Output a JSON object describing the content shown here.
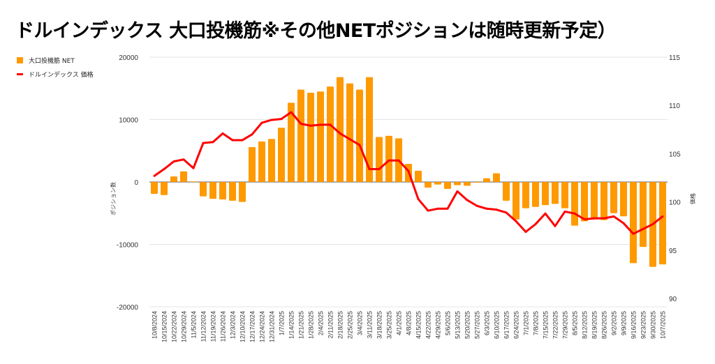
{
  "title": "ドルインデックス 大口投機筋※その他NETポジションは随時更新予定）",
  "chart_data": {
    "type": "bar+line",
    "title": "ドルインデックス 大口投機筋※その他NETポジションは随時更新予定）",
    "ylabel": "ポジション数",
    "y2label": "価格",
    "ylim": [
      -20000,
      20000
    ],
    "y2lim": [
      90,
      115
    ],
    "yticks": [
      "20000",
      "10000",
      "0",
      "-10000",
      "-20000"
    ],
    "y2ticks": [
      "115",
      "110",
      "105",
      "100",
      "95",
      "90"
    ],
    "legend_position": "top-left",
    "colors": {
      "bar": "#ff9900",
      "line": "#ff0000"
    },
    "categories": [
      "10/8/2024",
      "10/15/2024",
      "10/22/2024",
      "10/29/2024",
      "11/5/2024",
      "11/12/2024",
      "11/19/2024",
      "11/26/2024",
      "12/3/2024",
      "12/10/2024",
      "12/17/2024",
      "12/24/2024",
      "12/31/2024",
      "1/7/2025",
      "1/14/2025",
      "1/21/2025",
      "1/28/2025",
      "2/4/2025",
      "2/11/2025",
      "2/18/2025",
      "2/25/2025",
      "3/4/2025",
      "3/11/2025",
      "3/18/2025",
      "3/25/2025",
      "4/1/2025",
      "4/8/2025",
      "4/15/2025",
      "4/22/2025",
      "4/29/2025",
      "5/6/2025",
      "5/13/2025",
      "5/20/2025",
      "5/27/2025",
      "6/3/2025",
      "6/10/2025",
      "6/17/2025",
      "6/24/2025",
      "7/1/2025",
      "7/8/2025",
      "7/15/2025",
      "7/22/2025",
      "7/29/2025",
      "8/5/2025",
      "8/12/2025",
      "8/19/2025",
      "8/26/2025",
      "9/2/2025",
      "9/9/2025",
      "9/16/2025",
      "9/23/2025",
      "9/30/2025",
      "10/7/2025"
    ],
    "series": [
      {
        "name": "大口投機筋  NET",
        "type": "bar",
        "axis": "left",
        "values": [
          -1900,
          -2100,
          900,
          1700,
          100,
          -2300,
          -2700,
          -2800,
          -3000,
          -3200,
          5600,
          6500,
          6900,
          8700,
          12700,
          14800,
          14300,
          14500,
          15300,
          16800,
          15800,
          14800,
          16800,
          7200,
          7400,
          7000,
          2900,
          1800,
          -900,
          -400,
          -1100,
          -500,
          -600,
          -100,
          600,
          1400,
          -3000,
          -6000,
          -4200,
          -4000,
          -3700,
          -3500,
          -4200,
          -7000,
          -6300,
          -6000,
          -6100,
          -5000,
          -5500,
          -13000,
          -10400,
          -13600,
          -13200
        ]
      },
      {
        "name": "ドルインデックス 価格",
        "type": "line",
        "axis": "right",
        "values": [
          102.7,
          103.4,
          104.2,
          104.4,
          103.5,
          106.1,
          106.2,
          107.1,
          106.4,
          106.4,
          107.0,
          108.2,
          108.5,
          108.6,
          109.3,
          108.1,
          107.9,
          108.0,
          108.0,
          107.1,
          106.5,
          105.9,
          103.4,
          103.4,
          104.3,
          104.3,
          103.2,
          100.3,
          99.1,
          99.3,
          99.3,
          101.1,
          100.2,
          99.6,
          99.3,
          99.2,
          98.9,
          98.0,
          96.9,
          97.7,
          98.8,
          97.5,
          99.0,
          98.8,
          98.2,
          98.3,
          98.3,
          98.5,
          97.8,
          96.7,
          97.2,
          97.7,
          98.5
        ]
      }
    ]
  }
}
